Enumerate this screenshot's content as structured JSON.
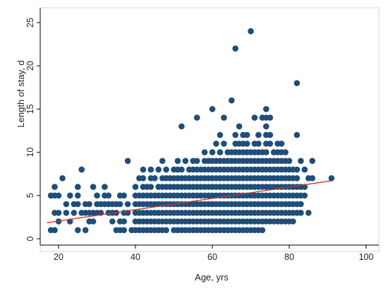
{
  "chart_data": {
    "type": "scatter",
    "title": "",
    "xlabel": "Age, yrs",
    "ylabel": "Length of stay, d",
    "xlim": [
      15,
      100
    ],
    "ylim": [
      0,
      25
    ],
    "xticks": [
      20,
      40,
      60,
      80,
      100
    ],
    "yticks": [
      0,
      5,
      10,
      15,
      20,
      25
    ],
    "grid": false,
    "legend": "none",
    "colors": {
      "points": "#1f4e79",
      "fit_line": "#c0392b",
      "axis": "#000000",
      "frame": "#d0d0d0"
    },
    "points": [
      [
        18,
        1
      ],
      [
        19,
        1
      ],
      [
        18,
        5
      ],
      [
        19,
        5
      ],
      [
        19,
        6
      ],
      [
        20,
        5
      ],
      [
        21,
        7
      ],
      [
        19,
        3
      ],
      [
        20,
        3
      ],
      [
        22,
        3
      ],
      [
        20,
        2
      ],
      [
        23,
        2
      ],
      [
        22,
        4
      ],
      [
        24,
        4
      ],
      [
        25,
        4
      ],
      [
        23,
        5
      ],
      [
        25,
        5
      ],
      [
        25,
        6
      ],
      [
        26,
        8
      ],
      [
        24,
        3
      ],
      [
        26,
        3
      ],
      [
        27,
        3
      ],
      [
        27,
        4
      ],
      [
        28,
        4
      ],
      [
        28,
        3
      ],
      [
        28,
        2
      ],
      [
        29,
        2
      ],
      [
        29,
        3
      ],
      [
        30,
        3
      ],
      [
        30,
        4
      ],
      [
        30,
        5
      ],
      [
        29,
        6
      ],
      [
        25,
        1
      ],
      [
        27,
        1
      ],
      [
        31,
        3
      ],
      [
        31,
        4
      ],
      [
        32,
        4
      ],
      [
        32,
        5
      ],
      [
        33,
        5
      ],
      [
        32,
        6
      ],
      [
        33,
        3
      ],
      [
        33,
        4
      ],
      [
        34,
        4
      ],
      [
        34,
        3
      ],
      [
        35,
        3
      ],
      [
        35,
        4
      ],
      [
        36,
        4
      ],
      [
        36,
        5
      ],
      [
        37,
        5
      ],
      [
        37,
        3
      ],
      [
        37,
        2
      ],
      [
        38,
        3
      ],
      [
        38,
        4
      ],
      [
        38,
        9
      ],
      [
        35,
        1
      ],
      [
        36,
        1
      ],
      [
        37,
        1
      ],
      [
        39,
        1
      ],
      [
        34,
        2
      ],
      [
        36,
        2
      ],
      [
        40,
        1
      ],
      [
        41,
        1
      ],
      [
        42,
        1
      ],
      [
        43,
        1
      ],
      [
        44,
        1
      ],
      [
        45,
        1
      ],
      [
        46,
        1
      ],
      [
        47,
        1
      ],
      [
        48,
        1
      ],
      [
        40,
        2
      ],
      [
        41,
        2
      ],
      [
        42,
        2
      ],
      [
        43,
        2
      ],
      [
        44,
        2
      ],
      [
        45,
        2
      ],
      [
        46,
        2
      ],
      [
        47,
        2
      ],
      [
        48,
        2
      ],
      [
        49,
        2
      ],
      [
        40,
        3
      ],
      [
        41,
        3
      ],
      [
        42,
        3
      ],
      [
        43,
        3
      ],
      [
        44,
        3
      ],
      [
        45,
        3
      ],
      [
        46,
        3
      ],
      [
        47,
        3
      ],
      [
        48,
        3
      ],
      [
        49,
        3
      ],
      [
        40,
        4
      ],
      [
        41,
        4
      ],
      [
        42,
        4
      ],
      [
        43,
        4
      ],
      [
        44,
        4
      ],
      [
        45,
        4
      ],
      [
        46,
        4
      ],
      [
        47,
        4
      ],
      [
        48,
        4
      ],
      [
        49,
        4
      ],
      [
        40,
        5
      ],
      [
        41,
        5
      ],
      [
        42,
        5
      ],
      [
        43,
        5
      ],
      [
        44,
        5
      ],
      [
        45,
        5
      ],
      [
        46,
        5
      ],
      [
        47,
        5
      ],
      [
        48,
        5
      ],
      [
        49,
        5
      ],
      [
        40,
        6
      ],
      [
        42,
        6
      ],
      [
        43,
        6
      ],
      [
        44,
        6
      ],
      [
        46,
        6
      ],
      [
        47,
        6
      ],
      [
        48,
        6
      ],
      [
        49,
        6
      ],
      [
        41,
        7
      ],
      [
        42,
        7
      ],
      [
        44,
        7
      ],
      [
        45,
        7
      ],
      [
        47,
        7
      ],
      [
        48,
        7
      ],
      [
        49,
        7
      ],
      [
        42,
        8
      ],
      [
        44,
        8
      ],
      [
        46,
        8
      ],
      [
        48,
        8
      ],
      [
        47,
        9
      ],
      [
        50,
        1
      ],
      [
        51,
        1
      ],
      [
        52,
        1
      ],
      [
        53,
        1
      ],
      [
        54,
        1
      ],
      [
        55,
        1
      ],
      [
        56,
        1
      ],
      [
        57,
        1
      ],
      [
        58,
        1
      ],
      [
        59,
        1
      ],
      [
        50,
        2
      ],
      [
        51,
        2
      ],
      [
        52,
        2
      ],
      [
        53,
        2
      ],
      [
        54,
        2
      ],
      [
        55,
        2
      ],
      [
        56,
        2
      ],
      [
        57,
        2
      ],
      [
        58,
        2
      ],
      [
        59,
        2
      ],
      [
        50,
        3
      ],
      [
        51,
        3
      ],
      [
        52,
        3
      ],
      [
        53,
        3
      ],
      [
        54,
        3
      ],
      [
        55,
        3
      ],
      [
        56,
        3
      ],
      [
        57,
        3
      ],
      [
        58,
        3
      ],
      [
        59,
        3
      ],
      [
        50,
        4
      ],
      [
        51,
        4
      ],
      [
        52,
        4
      ],
      [
        53,
        4
      ],
      [
        54,
        4
      ],
      [
        55,
        4
      ],
      [
        56,
        4
      ],
      [
        57,
        4
      ],
      [
        58,
        4
      ],
      [
        59,
        4
      ],
      [
        50,
        5
      ],
      [
        51,
        5
      ],
      [
        52,
        5
      ],
      [
        53,
        5
      ],
      [
        54,
        5
      ],
      [
        55,
        5
      ],
      [
        56,
        5
      ],
      [
        57,
        5
      ],
      [
        58,
        5
      ],
      [
        59,
        5
      ],
      [
        50,
        6
      ],
      [
        51,
        6
      ],
      [
        52,
        6
      ],
      [
        53,
        6
      ],
      [
        54,
        6
      ],
      [
        55,
        6
      ],
      [
        56,
        6
      ],
      [
        57,
        6
      ],
      [
        58,
        6
      ],
      [
        59,
        6
      ],
      [
        50,
        7
      ],
      [
        51,
        7
      ],
      [
        52,
        7
      ],
      [
        53,
        7
      ],
      [
        54,
        7
      ],
      [
        55,
        7
      ],
      [
        56,
        7
      ],
      [
        57,
        7
      ],
      [
        58,
        7
      ],
      [
        59,
        7
      ],
      [
        50,
        8
      ],
      [
        51,
        8
      ],
      [
        52,
        8
      ],
      [
        54,
        8
      ],
      [
        55,
        8
      ],
      [
        56,
        8
      ],
      [
        57,
        8
      ],
      [
        58,
        8
      ],
      [
        59,
        8
      ],
      [
        51,
        9
      ],
      [
        53,
        9
      ],
      [
        55,
        9
      ],
      [
        56,
        9
      ],
      [
        58,
        9
      ],
      [
        59,
        9
      ],
      [
        52,
        13
      ],
      [
        56,
        14
      ],
      [
        58,
        10
      ],
      [
        59,
        9
      ],
      [
        60,
        1
      ],
      [
        61,
        1
      ],
      [
        62,
        1
      ],
      [
        63,
        1
      ],
      [
        64,
        1
      ],
      [
        65,
        1
      ],
      [
        66,
        1
      ],
      [
        67,
        1
      ],
      [
        68,
        1
      ],
      [
        69,
        1
      ],
      [
        60,
        2
      ],
      [
        61,
        2
      ],
      [
        62,
        2
      ],
      [
        63,
        2
      ],
      [
        64,
        2
      ],
      [
        65,
        2
      ],
      [
        66,
        2
      ],
      [
        67,
        2
      ],
      [
        68,
        2
      ],
      [
        69,
        2
      ],
      [
        60,
        3
      ],
      [
        61,
        3
      ],
      [
        62,
        3
      ],
      [
        63,
        3
      ],
      [
        64,
        3
      ],
      [
        65,
        3
      ],
      [
        66,
        3
      ],
      [
        67,
        3
      ],
      [
        68,
        3
      ],
      [
        69,
        3
      ],
      [
        60,
        4
      ],
      [
        61,
        4
      ],
      [
        62,
        4
      ],
      [
        63,
        4
      ],
      [
        64,
        4
      ],
      [
        65,
        4
      ],
      [
        66,
        4
      ],
      [
        67,
        4
      ],
      [
        68,
        4
      ],
      [
        69,
        4
      ],
      [
        60,
        5
      ],
      [
        61,
        5
      ],
      [
        62,
        5
      ],
      [
        63,
        5
      ],
      [
        64,
        5
      ],
      [
        65,
        5
      ],
      [
        66,
        5
      ],
      [
        67,
        5
      ],
      [
        68,
        5
      ],
      [
        69,
        5
      ],
      [
        60,
        6
      ],
      [
        61,
        6
      ],
      [
        62,
        6
      ],
      [
        63,
        6
      ],
      [
        64,
        6
      ],
      [
        65,
        6
      ],
      [
        66,
        6
      ],
      [
        67,
        6
      ],
      [
        68,
        6
      ],
      [
        69,
        6
      ],
      [
        60,
        7
      ],
      [
        61,
        7
      ],
      [
        62,
        7
      ],
      [
        63,
        7
      ],
      [
        64,
        7
      ],
      [
        65,
        7
      ],
      [
        66,
        7
      ],
      [
        67,
        7
      ],
      [
        68,
        7
      ],
      [
        69,
        7
      ],
      [
        60,
        8
      ],
      [
        61,
        8
      ],
      [
        62,
        8
      ],
      [
        63,
        8
      ],
      [
        64,
        8
      ],
      [
        65,
        8
      ],
      [
        66,
        8
      ],
      [
        67,
        8
      ],
      [
        68,
        8
      ],
      [
        69,
        8
      ],
      [
        60,
        9
      ],
      [
        61,
        9
      ],
      [
        62,
        9
      ],
      [
        63,
        9
      ],
      [
        64,
        9
      ],
      [
        65,
        9
      ],
      [
        66,
        9
      ],
      [
        67,
        9
      ],
      [
        68,
        9
      ],
      [
        69,
        9
      ],
      [
        60,
        10
      ],
      [
        62,
        10
      ],
      [
        64,
        10
      ],
      [
        65,
        10
      ],
      [
        66,
        10
      ],
      [
        67,
        10
      ],
      [
        68,
        10
      ],
      [
        69,
        10
      ],
      [
        61,
        11
      ],
      [
        63,
        11
      ],
      [
        66,
        11
      ],
      [
        67,
        11
      ],
      [
        68,
        11
      ],
      [
        69,
        11
      ],
      [
        62,
        12
      ],
      [
        66,
        12
      ],
      [
        68,
        12
      ],
      [
        67,
        13
      ],
      [
        63,
        14
      ],
      [
        60,
        15
      ],
      [
        65,
        16
      ],
      [
        66,
        22
      ],
      [
        69,
        12
      ],
      [
        70,
        1
      ],
      [
        71,
        1
      ],
      [
        72,
        1
      ],
      [
        73,
        1
      ],
      [
        70,
        2
      ],
      [
        71,
        2
      ],
      [
        72,
        2
      ],
      [
        73,
        2
      ],
      [
        74,
        2
      ],
      [
        75,
        2
      ],
      [
        76,
        2
      ],
      [
        77,
        2
      ],
      [
        78,
        2
      ],
      [
        79,
        2
      ],
      [
        70,
        3
      ],
      [
        71,
        3
      ],
      [
        72,
        3
      ],
      [
        73,
        3
      ],
      [
        74,
        3
      ],
      [
        75,
        3
      ],
      [
        76,
        3
      ],
      [
        77,
        3
      ],
      [
        78,
        3
      ],
      [
        79,
        3
      ],
      [
        70,
        4
      ],
      [
        71,
        4
      ],
      [
        72,
        4
      ],
      [
        73,
        4
      ],
      [
        74,
        4
      ],
      [
        75,
        4
      ],
      [
        76,
        4
      ],
      [
        77,
        4
      ],
      [
        78,
        4
      ],
      [
        79,
        4
      ],
      [
        70,
        5
      ],
      [
        71,
        5
      ],
      [
        72,
        5
      ],
      [
        73,
        5
      ],
      [
        74,
        5
      ],
      [
        75,
        5
      ],
      [
        76,
        5
      ],
      [
        77,
        5
      ],
      [
        78,
        5
      ],
      [
        79,
        5
      ],
      [
        70,
        6
      ],
      [
        71,
        6
      ],
      [
        72,
        6
      ],
      [
        73,
        6
      ],
      [
        74,
        6
      ],
      [
        75,
        6
      ],
      [
        76,
        6
      ],
      [
        77,
        6
      ],
      [
        78,
        6
      ],
      [
        79,
        6
      ],
      [
        70,
        7
      ],
      [
        71,
        7
      ],
      [
        72,
        7
      ],
      [
        73,
        7
      ],
      [
        74,
        7
      ],
      [
        75,
        7
      ],
      [
        76,
        7
      ],
      [
        77,
        7
      ],
      [
        78,
        7
      ],
      [
        79,
        7
      ],
      [
        70,
        8
      ],
      [
        71,
        8
      ],
      [
        72,
        8
      ],
      [
        73,
        8
      ],
      [
        74,
        8
      ],
      [
        75,
        8
      ],
      [
        76,
        8
      ],
      [
        77,
        8
      ],
      [
        78,
        8
      ],
      [
        79,
        8
      ],
      [
        70,
        9
      ],
      [
        71,
        9
      ],
      [
        72,
        9
      ],
      [
        73,
        9
      ],
      [
        74,
        9
      ],
      [
        75,
        9
      ],
      [
        76,
        9
      ],
      [
        77,
        9
      ],
      [
        78,
        9
      ],
      [
        79,
        9
      ],
      [
        70,
        10
      ],
      [
        71,
        10
      ],
      [
        72,
        10
      ],
      [
        73,
        10
      ],
      [
        74,
        10
      ],
      [
        76,
        10
      ],
      [
        77,
        10
      ],
      [
        78,
        10
      ],
      [
        79,
        10
      ],
      [
        71,
        11
      ],
      [
        72,
        11
      ],
      [
        74,
        11
      ],
      [
        75,
        11
      ],
      [
        77,
        11
      ],
      [
        78,
        11
      ],
      [
        72,
        12
      ],
      [
        74,
        12
      ],
      [
        75,
        12
      ],
      [
        74,
        13
      ],
      [
        71,
        14
      ],
      [
        73,
        14
      ],
      [
        74,
        14
      ],
      [
        75,
        14
      ],
      [
        74,
        15
      ],
      [
        70,
        24
      ],
      [
        80,
        2
      ],
      [
        81,
        2
      ],
      [
        80,
        3
      ],
      [
        81,
        3
      ],
      [
        82,
        3
      ],
      [
        83,
        3
      ],
      [
        80,
        4
      ],
      [
        81,
        4
      ],
      [
        82,
        4
      ],
      [
        83,
        4
      ],
      [
        80,
        5
      ],
      [
        81,
        5
      ],
      [
        82,
        5
      ],
      [
        83,
        5
      ],
      [
        84,
        5
      ],
      [
        80,
        6
      ],
      [
        81,
        6
      ],
      [
        82,
        6
      ],
      [
        83,
        6
      ],
      [
        84,
        6
      ],
      [
        80,
        7
      ],
      [
        81,
        7
      ],
      [
        82,
        7
      ],
      [
        85,
        7
      ],
      [
        80,
        8
      ],
      [
        81,
        8
      ],
      [
        82,
        8
      ],
      [
        84,
        8
      ],
      [
        80,
        9
      ],
      [
        83,
        9
      ],
      [
        86,
        9
      ],
      [
        82,
        12
      ],
      [
        82,
        18
      ],
      [
        85,
        3
      ],
      [
        86,
        7
      ],
      [
        91,
        7
      ]
    ],
    "trendline": {
      "x": [
        17,
        91
      ],
      "y": [
        1.85,
        6.7
      ]
    }
  }
}
